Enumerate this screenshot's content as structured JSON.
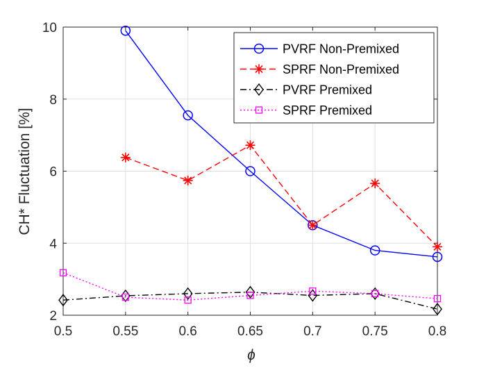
{
  "chart_data": {
    "type": "line",
    "title": "",
    "xlabel": "ϕ",
    "ylabel": "CH* Fluctuation [%]",
    "xlim": [
      0.5,
      0.8
    ],
    "ylim": [
      2,
      10
    ],
    "xticks": [
      0.5,
      0.55,
      0.6,
      0.65,
      0.7,
      0.75,
      0.8
    ],
    "xtick_labels": [
      "0.5",
      "0.55",
      "0.6",
      "0.65",
      "0.7",
      "0.75",
      "0.8"
    ],
    "yticks": [
      2,
      4,
      6,
      8,
      10
    ],
    "ytick_labels": [
      "2",
      "4",
      "6",
      "8",
      "10"
    ],
    "grid": true,
    "legend_position": "top-right",
    "series": [
      {
        "name": "PVRF Non-Premixed",
        "color": "#0000ff",
        "line": "solid",
        "marker": "circle",
        "x": [
          0.55,
          0.6,
          0.65,
          0.7,
          0.75,
          0.8
        ],
        "y": [
          9.9,
          7.55,
          6.0,
          4.5,
          3.8,
          3.62
        ]
      },
      {
        "name": "SPRF Non-Premixed",
        "color": "#ff0000",
        "line": "dashed",
        "marker": "asterisk",
        "x": [
          0.55,
          0.6,
          0.65,
          0.7,
          0.75,
          0.8
        ],
        "y": [
          6.38,
          5.74,
          6.72,
          4.5,
          5.66,
          3.9
        ]
      },
      {
        "name": "PVRF Premixed",
        "color": "#000000",
        "line": "dashdot",
        "marker": "diamond",
        "x": [
          0.5,
          0.55,
          0.6,
          0.65,
          0.7,
          0.75,
          0.8
        ],
        "y": [
          2.42,
          2.54,
          2.6,
          2.64,
          2.55,
          2.6,
          2.17
        ]
      },
      {
        "name": "SPRF Premixed",
        "color": "#ff00ff",
        "line": "dotted",
        "marker": "square",
        "x": [
          0.5,
          0.55,
          0.6,
          0.65,
          0.7,
          0.75,
          0.8
        ],
        "y": [
          3.18,
          2.5,
          2.42,
          2.55,
          2.67,
          2.6,
          2.46
        ]
      }
    ]
  }
}
